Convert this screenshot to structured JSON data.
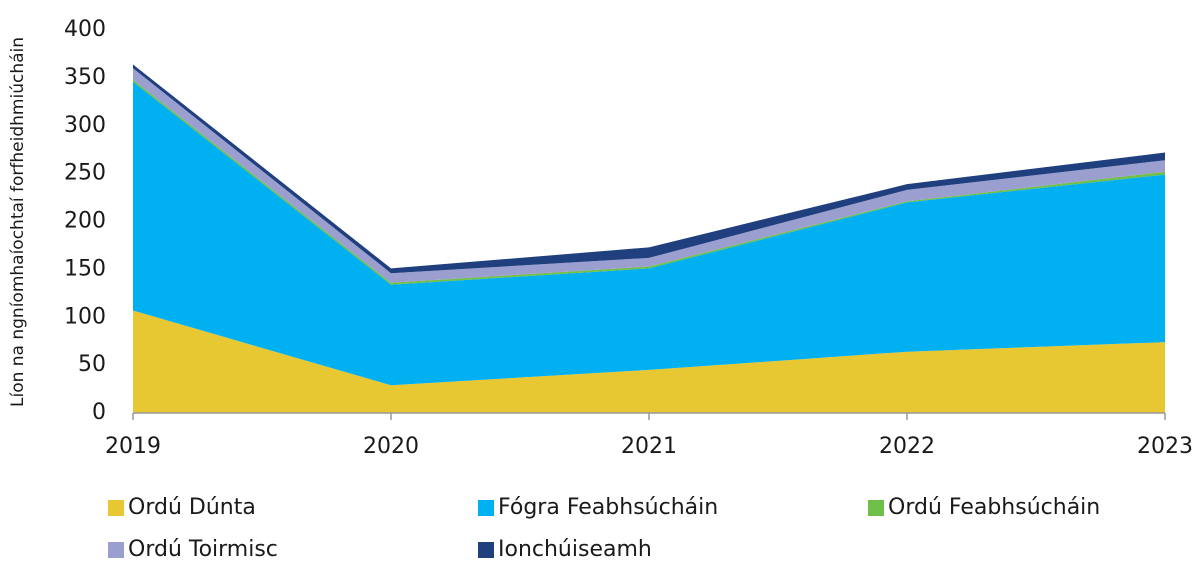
{
  "chart_data": {
    "type": "stacked_area",
    "y_label": "Líon  na ngníomhaíochtaí forfheidhmiúcháin",
    "categories": [
      "2019",
      "2020",
      "2021",
      "2022",
      "2023"
    ],
    "series": [
      {
        "name": "Ordú Dúnta",
        "color": "#e8c832",
        "values": [
          107,
          29,
          45,
          64,
          74
        ]
      },
      {
        "name": "Fógra Feabhsúcháin",
        "color": "#00b0f0",
        "values": [
          239,
          105,
          106,
          156,
          175
        ]
      },
      {
        "name": "Ordú Feabhsúcháin",
        "color": "#70bf4a",
        "values": [
          2,
          2,
          2,
          1,
          3
        ]
      },
      {
        "name": "Ordú Toirmisc",
        "color": "#9b9fd0",
        "values": [
          12,
          10,
          9,
          12,
          12
        ]
      },
      {
        "name": "Ionchúiseamh",
        "color": "#1f3f7f",
        "values": [
          4,
          5,
          11,
          6,
          8
        ]
      }
    ],
    "ylim": [
      0,
      400
    ],
    "yticks": [
      0,
      50,
      100,
      150,
      200,
      250,
      300,
      350,
      400
    ],
    "legend": "bottom"
  }
}
